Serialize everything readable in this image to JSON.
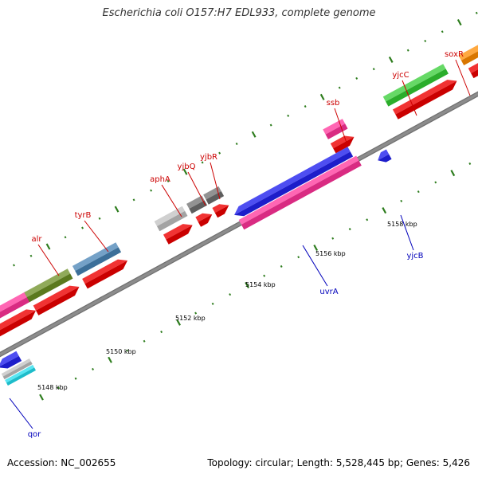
{
  "title": "Escherichia coli O157:H7 EDL933, complete genome",
  "footer": {
    "accession": "Accession: NC_002655",
    "summary": "Topology: circular; Length: 5,528,445 bp; Genes: 5,426"
  },
  "colors": {
    "backbone": "#8c8c8c",
    "tick": "#2e7d1e",
    "forward_label": "#cc0000",
    "reverse_label": "#0000bb",
    "cds": "#ee0000"
  },
  "scale_labels": [
    "5148 kbp",
    "5150 kbp",
    "5152 kbp",
    "5154 kbp",
    "5156 kbp",
    "5158 kbp"
  ],
  "genes": [
    {
      "name": "qor",
      "strand": "reverse",
      "color": "#2222ee"
    },
    {
      "name": "alr",
      "strand": "forward",
      "color": "#6b8e23"
    },
    {
      "name": "tyrB",
      "strand": "forward",
      "color": "#4682b4"
    },
    {
      "name": "aphA",
      "strand": "forward",
      "color": "#c0c0c0"
    },
    {
      "name": "yjbQ",
      "strand": "forward",
      "color": "#6e6e6e"
    },
    {
      "name": "yjbR",
      "strand": "forward",
      "color": "#6e6e6e"
    },
    {
      "name": "uvrA",
      "strand": "reverse",
      "color": "#2222ee"
    },
    {
      "name": "ssb",
      "strand": "forward",
      "color": "#ff3399"
    },
    {
      "name": "yjcB",
      "strand": "reverse",
      "color": "#2222ee"
    },
    {
      "name": "yjcC",
      "strand": "forward",
      "color": "#33cc33"
    },
    {
      "name": "soxR",
      "strand": "forward",
      "color": "#ff8c00"
    }
  ]
}
